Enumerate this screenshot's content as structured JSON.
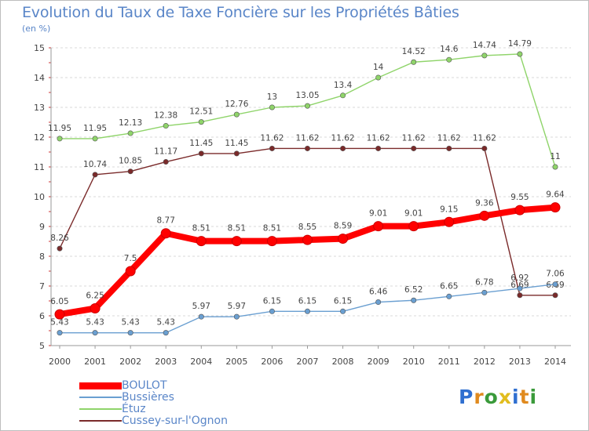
{
  "title": "Evolution du Taux de Taxe Foncière sur les Propriétés Bâties",
  "subtitle": "(en %)",
  "chart_data": {
    "type": "line",
    "title": "Evolution du Taux de Taxe Foncière sur les Propriétés Bâties",
    "ylabel": "(en %)",
    "xlabel": "",
    "x": [
      "2000",
      "2001",
      "2002",
      "2003",
      "2004",
      "2005",
      "2006",
      "2007",
      "2008",
      "2009",
      "2010",
      "2011",
      "2012",
      "2013",
      "2014"
    ],
    "ylim": [
      5,
      15
    ],
    "yticks": [
      "5",
      "6",
      "7",
      "8",
      "9",
      "10",
      "11",
      "12",
      "13",
      "14",
      "15"
    ],
    "grid": "horizontal dashed",
    "legend_position": "bottom-left",
    "series": [
      {
        "name": "BOULOT",
        "color": "#ff0000",
        "values": [
          6.05,
          6.25,
          7.5,
          8.77,
          8.51,
          8.51,
          8.51,
          8.55,
          8.59,
          9.01,
          9.01,
          9.15,
          9.36,
          9.55,
          9.64
        ],
        "labels": [
          "6.05",
          "6.25",
          "7.5",
          "8.77",
          "8.51",
          "8.51",
          "8.51",
          "8.55",
          "8.59",
          "9.01",
          "9.01",
          "9.15",
          "9.36",
          "9.55",
          "9.64"
        ]
      },
      {
        "name": "Bussières",
        "color": "#6a9fd1",
        "values": [
          5.43,
          5.43,
          5.43,
          5.43,
          5.97,
          5.97,
          6.15,
          6.15,
          6.15,
          6.46,
          6.52,
          6.65,
          6.78,
          6.92,
          7.06
        ],
        "labels": [
          "5.43",
          "5.43",
          "5.43",
          "5.43",
          "5.97",
          "5.97",
          "6.15",
          "6.15",
          "6.15",
          "6.46",
          "6.52",
          "6.65",
          "6.78",
          "6.92",
          "7.06"
        ]
      },
      {
        "name": "Étuz",
        "color": "#8fd46a",
        "values": [
          11.95,
          11.95,
          12.13,
          12.38,
          12.51,
          12.76,
          13,
          13.05,
          13.4,
          14,
          14.52,
          14.6,
          14.74,
          14.79,
          11
        ],
        "labels": [
          "11.95",
          "11.95",
          "12.13",
          "12.38",
          "12.51",
          "12.76",
          "13",
          "13.05",
          "13.4",
          "14",
          "14.52",
          "14.6",
          "14.74",
          "14.79",
          "11"
        ]
      },
      {
        "name": "Cussey-sur-l'Ognon",
        "color": "#7a2a2a",
        "values": [
          8.26,
          10.74,
          10.85,
          11.17,
          11.45,
          11.45,
          11.62,
          11.62,
          11.62,
          11.62,
          11.62,
          11.62,
          11.62,
          6.69,
          6.69
        ],
        "labels": [
          "8.26",
          "10.74",
          "10.85",
          "11.17",
          "11.45",
          "11.45",
          "11.62",
          "11.62",
          "11.62",
          "11.62",
          "11.62",
          "11.62",
          "11.62",
          "6.69",
          "6.69"
        ]
      }
    ]
  },
  "legend": {
    "items": [
      {
        "label": "BOULOT",
        "color": "#ff0000"
      },
      {
        "label": "Bussières",
        "color": "#6a9fd1"
      },
      {
        "label": "Étuz",
        "color": "#8fd46a"
      },
      {
        "label": "Cussey-sur-l'Ognon",
        "color": "#7a2a2a"
      }
    ]
  },
  "logo": {
    "letters": [
      "P",
      "r",
      "o",
      "x",
      "i",
      "t",
      "i"
    ],
    "colors": [
      "#2f6fd0",
      "#e08a1e",
      "#3a9a3a",
      "#e2bd1e",
      "#2f6fd0",
      "#e08a1e",
      "#3a9a3a"
    ]
  }
}
